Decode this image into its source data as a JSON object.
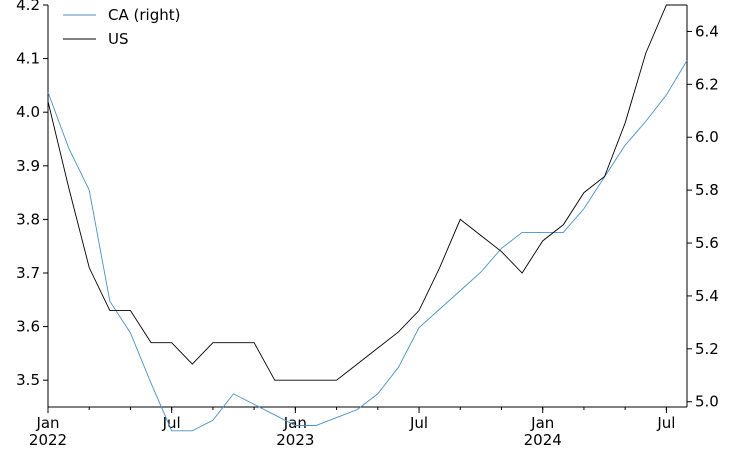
{
  "chart_data": {
    "type": "line",
    "x": [
      "2022-01",
      "2022-02",
      "2022-03",
      "2022-04",
      "2022-05",
      "2022-06",
      "2022-07",
      "2022-08",
      "2022-09",
      "2022-10",
      "2022-11",
      "2022-12",
      "2023-01",
      "2023-02",
      "2023-03",
      "2023-04",
      "2023-05",
      "2023-06",
      "2023-07",
      "2023-08",
      "2023-09",
      "2023-10",
      "2023-11",
      "2023-12",
      "2024-01",
      "2024-02",
      "2024-03",
      "2024-04",
      "2024-05",
      "2024-06",
      "2024-07",
      "2024-08"
    ],
    "x_ticks": [
      {
        "x": "2022-01",
        "label": "Jan",
        "sublabel": "2022"
      },
      {
        "x": "2022-07",
        "label": "Jul",
        "sublabel": ""
      },
      {
        "x": "2023-01",
        "label": "Jan",
        "sublabel": "2023"
      },
      {
        "x": "2023-07",
        "label": "Jul",
        "sublabel": ""
      },
      {
        "x": "2024-01",
        "label": "Jan",
        "sublabel": "2024"
      },
      {
        "x": "2024-07",
        "label": "Jul",
        "sublabel": ""
      }
    ],
    "y_left": {
      "ylim": [
        3.45,
        4.2
      ],
      "ticks": [
        "3.5",
        "3.6",
        "3.7",
        "3.8",
        "3.9",
        "4.0",
        "4.1",
        "4.2"
      ]
    },
    "y_right": {
      "ylim": [
        4.98,
        6.5
      ],
      "ticks": [
        "5.0",
        "5.2",
        "5.4",
        "5.6",
        "5.8",
        "6.0",
        "6.2",
        "6.4"
      ]
    },
    "series": [
      {
        "name": "CA (right)",
        "axis": "right",
        "color": "#4a90c4",
        "values": [
          6.17,
          5.96,
          5.8,
          5.38,
          5.26,
          5.07,
          4.89,
          4.89,
          4.93,
          5.03,
          4.99,
          4.95,
          4.91,
          4.91,
          4.94,
          4.97,
          5.03,
          5.13,
          5.28,
          5.35,
          5.42,
          5.49,
          5.58,
          5.64,
          5.64,
          5.64,
          5.73,
          5.85,
          5.97,
          6.06,
          6.16,
          6.29
        ]
      },
      {
        "name": "US",
        "axis": "left",
        "color": "#000000",
        "values": [
          4.02,
          3.86,
          3.71,
          3.63,
          3.63,
          3.57,
          3.57,
          3.53,
          3.57,
          3.57,
          3.57,
          3.5,
          3.5,
          3.5,
          3.5,
          3.53,
          3.56,
          3.59,
          3.63,
          3.71,
          3.8,
          3.77,
          3.74,
          3.7,
          3.76,
          3.79,
          3.85,
          3.88,
          3.98,
          4.11,
          4.2,
          4.2
        ]
      }
    ],
    "legend": {
      "position": "top-left"
    }
  }
}
